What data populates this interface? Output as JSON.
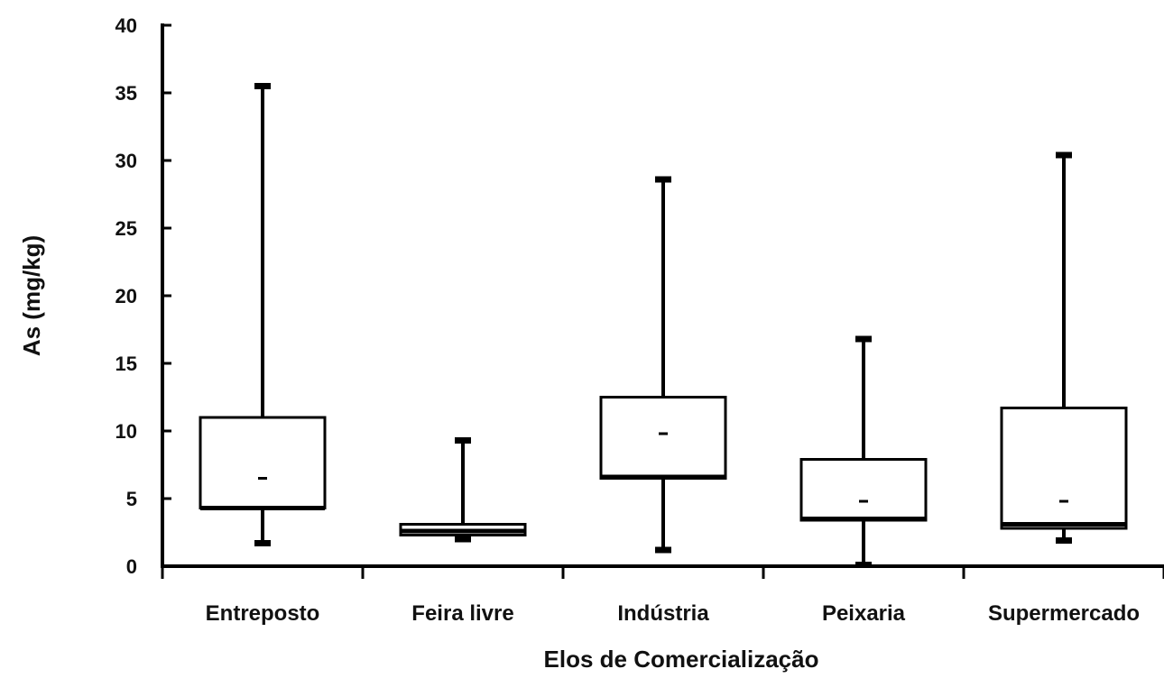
{
  "chart_data": {
    "type": "boxplot",
    "title": "",
    "xlabel": "Elos de Comercialização",
    "ylabel": "As (mg/kg)",
    "ylim": [
      0,
      40
    ],
    "yticks": [
      0,
      5,
      10,
      15,
      20,
      25,
      30,
      35,
      40
    ],
    "grid": false,
    "legend": "none",
    "categories": [
      "Entreposto",
      "Feira livre",
      "Indústria",
      "Peixaria",
      "Supermercado"
    ],
    "boxes": [
      {
        "category": "Entreposto",
        "min": 1.7,
        "q1": 4.3,
        "median": 4.3,
        "q3": 11.0,
        "max": 35.5,
        "mean": 6.5
      },
      {
        "category": "Feira livre",
        "min": 2.0,
        "q1": 2.3,
        "median": 2.6,
        "q3": 3.1,
        "max": 9.3,
        "mean": 2.6
      },
      {
        "category": "Indústria",
        "min": 1.2,
        "q1": 6.5,
        "median": 6.6,
        "q3": 12.5,
        "max": 28.6,
        "mean": 9.8
      },
      {
        "category": "Peixaria",
        "min": 0.1,
        "q1": 3.4,
        "median": 3.5,
        "q3": 7.9,
        "max": 16.8,
        "mean": 4.8
      },
      {
        "category": "Supermercado",
        "min": 1.9,
        "q1": 2.8,
        "median": 3.1,
        "q3": 11.7,
        "max": 30.4,
        "mean": 4.8
      }
    ]
  }
}
